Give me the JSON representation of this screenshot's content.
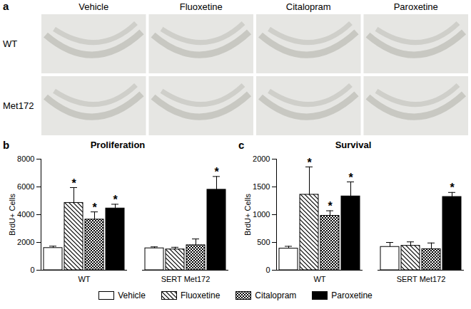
{
  "panel_a": {
    "label": "a",
    "columns": [
      "Vehicle",
      "Fluoxetine",
      "Citalopram",
      "Paroxetine"
    ],
    "rows": [
      "WT",
      "Met172"
    ]
  },
  "chart_data": [
    {
      "type": "bar",
      "panel_label": "b",
      "title": "Proliferation",
      "y_label": "BrdU+ Cells",
      "categories": [
        "WT",
        "SERT Met172"
      ],
      "ylim": [
        0,
        8000
      ],
      "yticks": [
        0,
        2000,
        4000,
        6000,
        8000
      ],
      "legend": "bottom",
      "annotation": "*",
      "series": [
        {
          "name": "Vehicle",
          "color": "#ffffff",
          "values": [
            1600,
            1580
          ],
          "errors": [
            130,
            100
          ],
          "significant": [
            false,
            false
          ]
        },
        {
          "name": "Fluoxetine",
          "color": "#000000",
          "values": [
            4850,
            1500
          ],
          "errors": [
            1100,
            150
          ],
          "significant": [
            true,
            false
          ]
        },
        {
          "name": "Citalopram",
          "color": "#000000",
          "values": [
            3650,
            1800
          ],
          "errors": [
            550,
            450
          ],
          "significant": [
            true,
            false
          ]
        },
        {
          "name": "Paroxetine",
          "color": "#000000",
          "values": [
            4450,
            5800
          ],
          "errors": [
            300,
            950
          ],
          "significant": [
            true,
            true
          ]
        }
      ]
    },
    {
      "type": "bar",
      "panel_label": "c",
      "title": "Survival",
      "y_label": "BrdU+ Cells",
      "categories": [
        "WT",
        "SERT Met172"
      ],
      "ylim": [
        0,
        2000
      ],
      "yticks": [
        0,
        500,
        1000,
        1500,
        2000
      ],
      "legend": "bottom",
      "annotation": "*",
      "series": [
        {
          "name": "Vehicle",
          "color": "#ffffff",
          "values": [
            390,
            420
          ],
          "errors": [
            40,
            80
          ],
          "significant": [
            false,
            false
          ]
        },
        {
          "name": "Fluoxetine",
          "color": "#000000",
          "values": [
            1360,
            440
          ],
          "errors": [
            500,
            70
          ],
          "significant": [
            true,
            false
          ]
        },
        {
          "name": "Citalopram",
          "color": "#000000",
          "values": [
            980,
            380
          ],
          "errors": [
            90,
            110
          ],
          "significant": [
            true,
            false
          ]
        },
        {
          "name": "Paroxetine",
          "color": "#000000",
          "values": [
            1330,
            1320
          ],
          "errors": [
            260,
            80
          ],
          "significant": [
            true,
            true
          ]
        }
      ]
    }
  ]
}
